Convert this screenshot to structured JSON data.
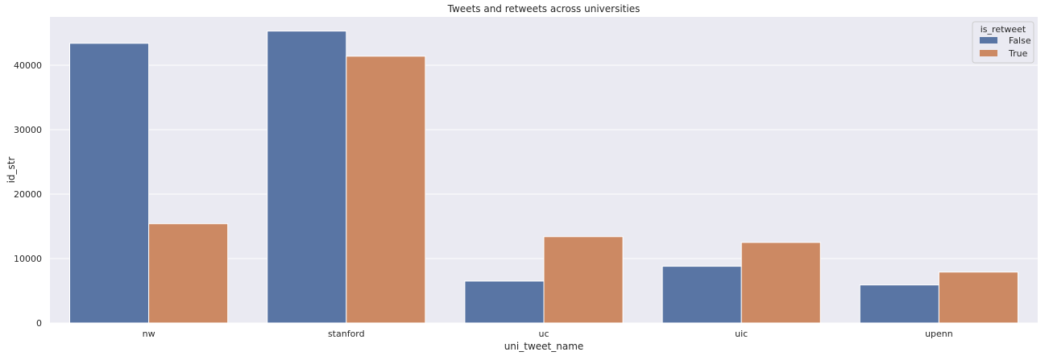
{
  "chart_data": {
    "type": "bar",
    "title": "Tweets and retweets across universities",
    "xlabel": "uni_tweet_name",
    "ylabel": "id_str",
    "categories": [
      "nw",
      "stanford",
      "uc",
      "uic",
      "upenn"
    ],
    "ylim": [
      0,
      47500
    ],
    "yticks": [
      0,
      10000,
      20000,
      30000,
      40000
    ],
    "grid": true,
    "legend": {
      "title": "is_retweet",
      "placement": "top-right"
    },
    "series": [
      {
        "name": "False",
        "color": "#5975a4",
        "values": [
          43400,
          45300,
          6500,
          8800,
          5900
        ]
      },
      {
        "name": "True",
        "color": "#cc8963",
        "values": [
          15400,
          41400,
          13400,
          12500,
          7900
        ]
      }
    ]
  },
  "colors": {
    "plot_background": "#eaeaf2",
    "grid": "#ffffff"
  }
}
